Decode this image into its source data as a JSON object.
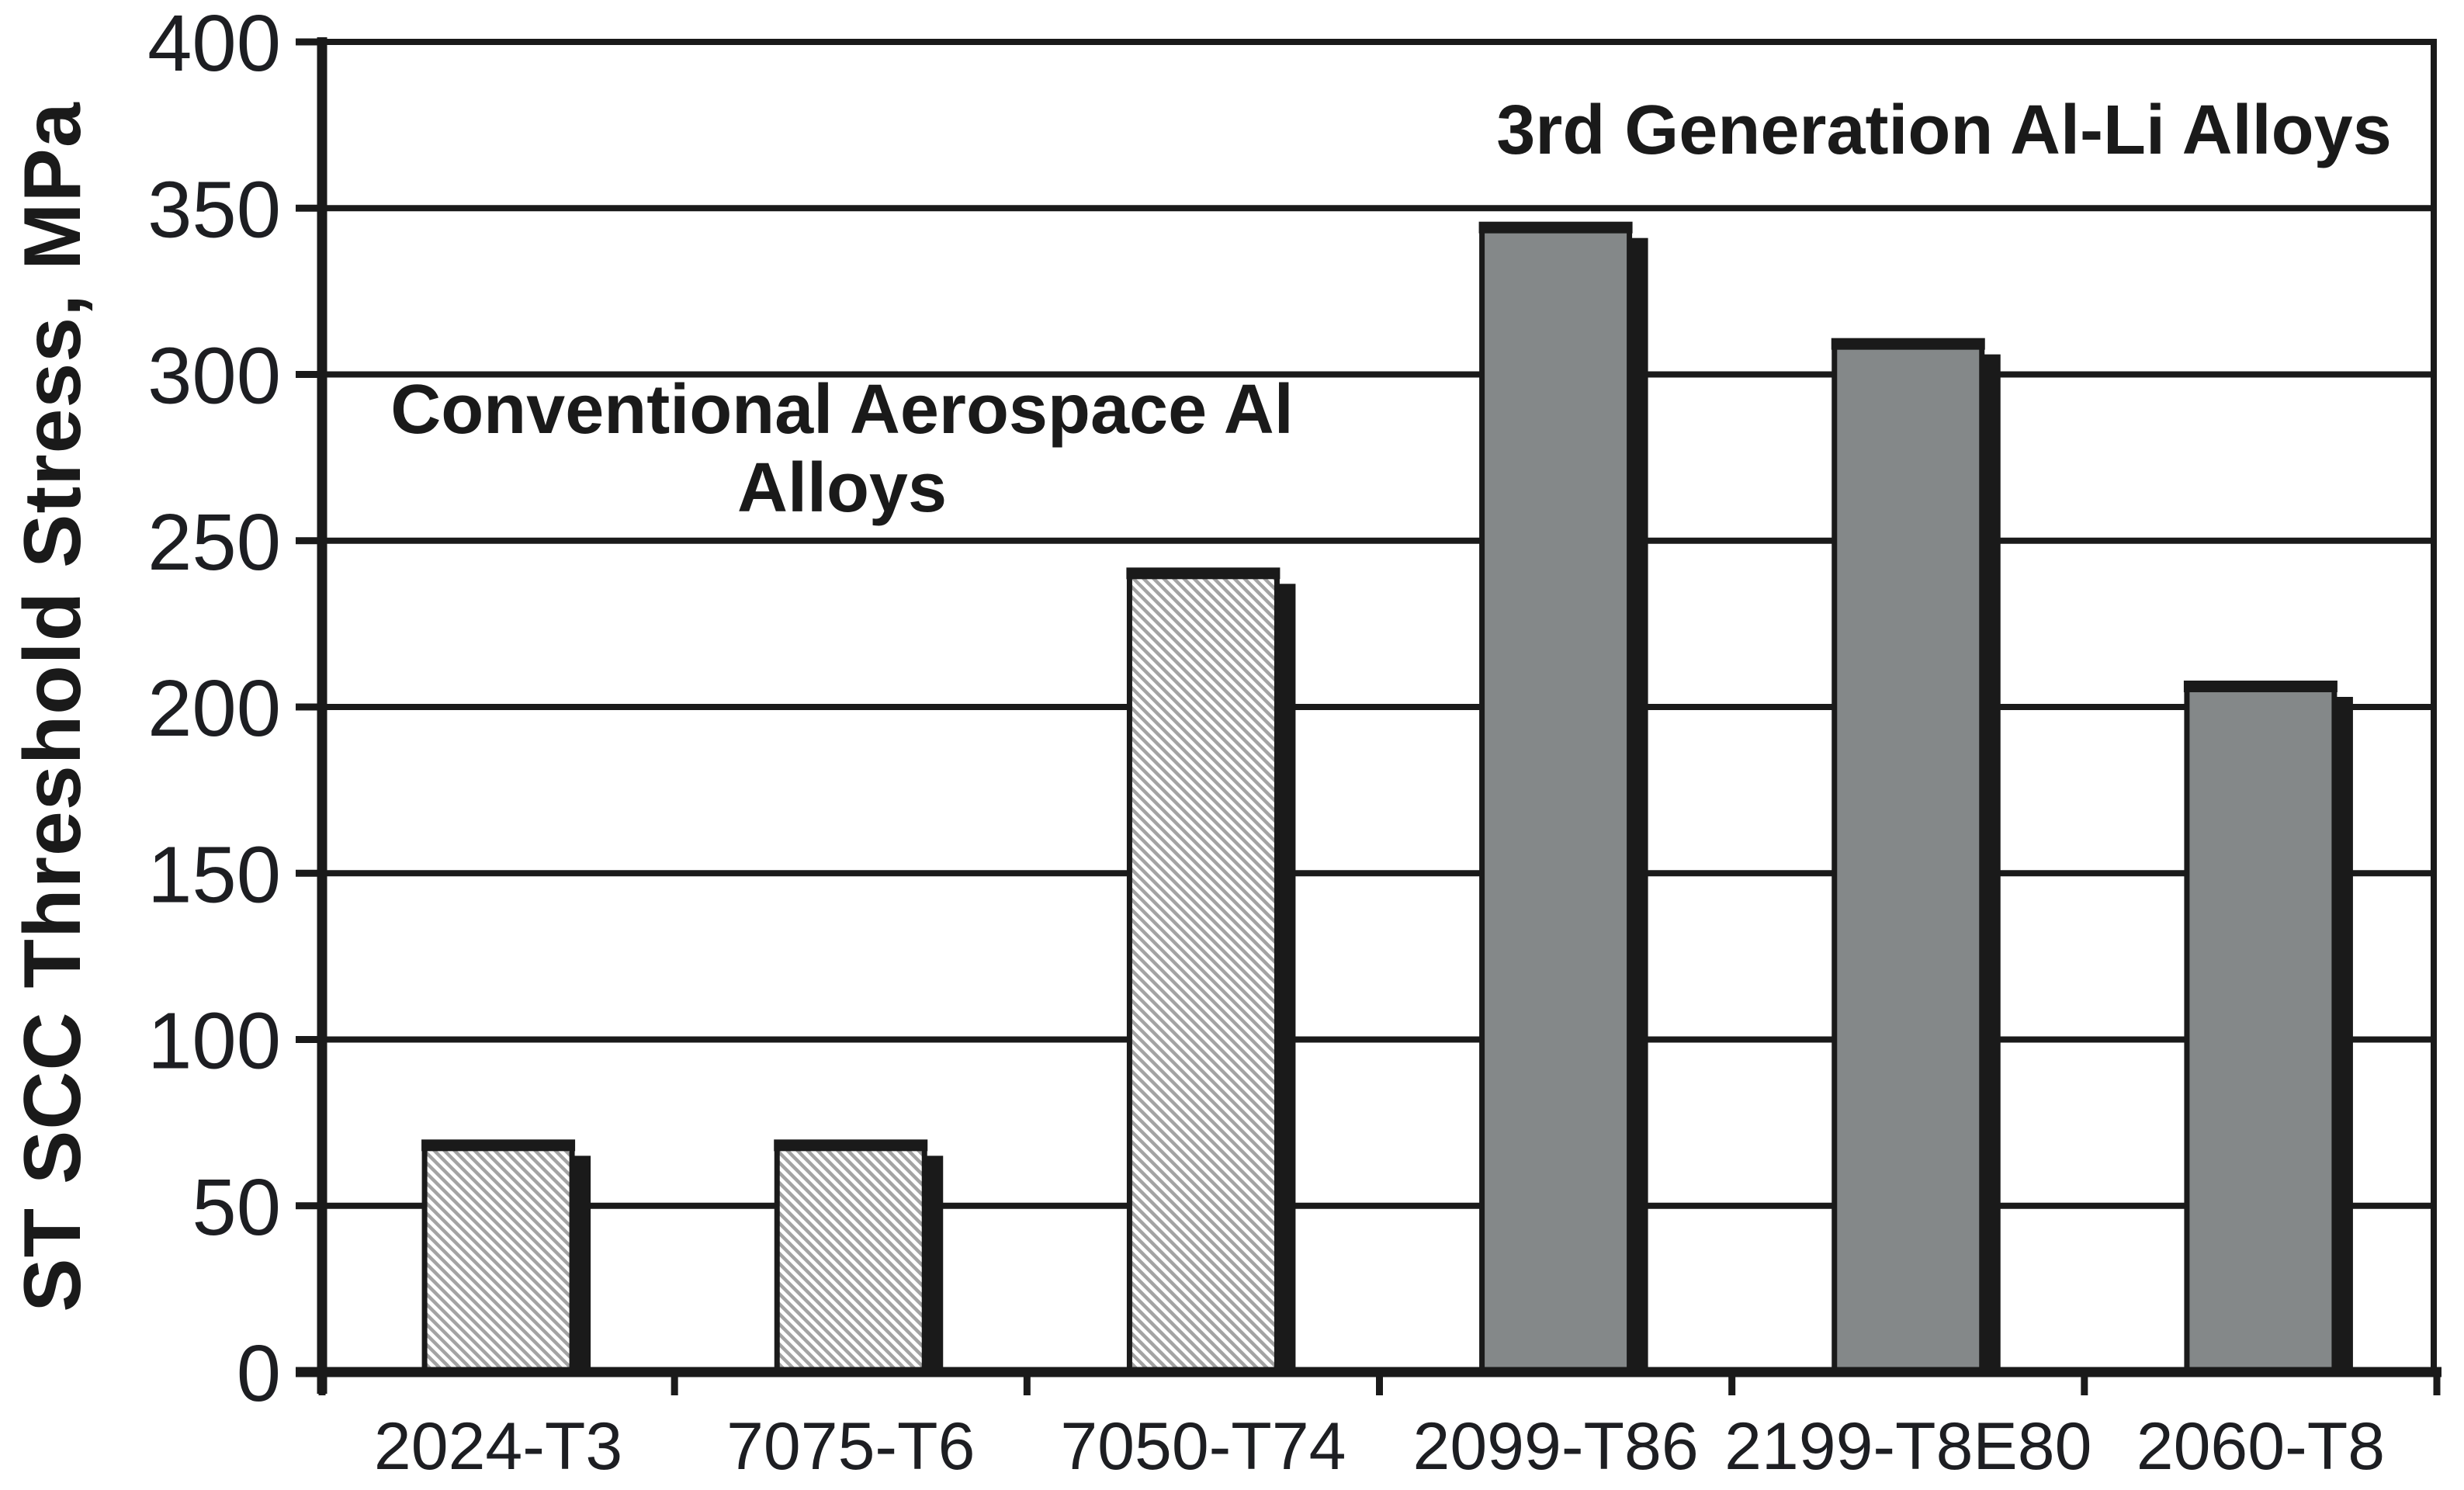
{
  "chart_data": {
    "type": "bar",
    "title": "",
    "ylabel": "ST SCC Threshold Stress, MPa",
    "xlabel": "",
    "ylim": [
      0,
      400
    ],
    "ytick_interval": 50,
    "yticks": [
      0,
      50,
      100,
      150,
      200,
      250,
      300,
      350,
      400
    ],
    "grid": true,
    "legend_position": "none",
    "categories": [
      "2024-T3",
      "7075-T6",
      "7050-T74",
      "2099-T86",
      "2199-T8E80",
      "2060-T8"
    ],
    "values": [
      69,
      69,
      241,
      345,
      310,
      207
    ],
    "styles": [
      "hatched",
      "hatched",
      "hatched",
      "solid",
      "solid",
      "solid"
    ],
    "groups": [
      {
        "name": "Conventional Aerospace Al Alloys",
        "categories": [
          "2024-T3",
          "7075-T6",
          "7050-T74"
        ],
        "style": "hatched"
      },
      {
        "name": "3rd Generation Al-Li Alloys",
        "categories": [
          "2099-T86",
          "2199-T8E80",
          "2060-T8"
        ],
        "style": "solid"
      }
    ],
    "annotations": [
      {
        "line1": "Conventional Aerospace Al",
        "line2": "Alloys"
      },
      {
        "line1": "3rd Generation Al-Li Alloys",
        "line2": ""
      }
    ],
    "colors": {
      "background": "#ffffff",
      "ink": "#1a1a1a",
      "bar_gray": "#848889",
      "hatch_line": "#a3a3a3",
      "tick_text": "#1d1e22"
    }
  }
}
